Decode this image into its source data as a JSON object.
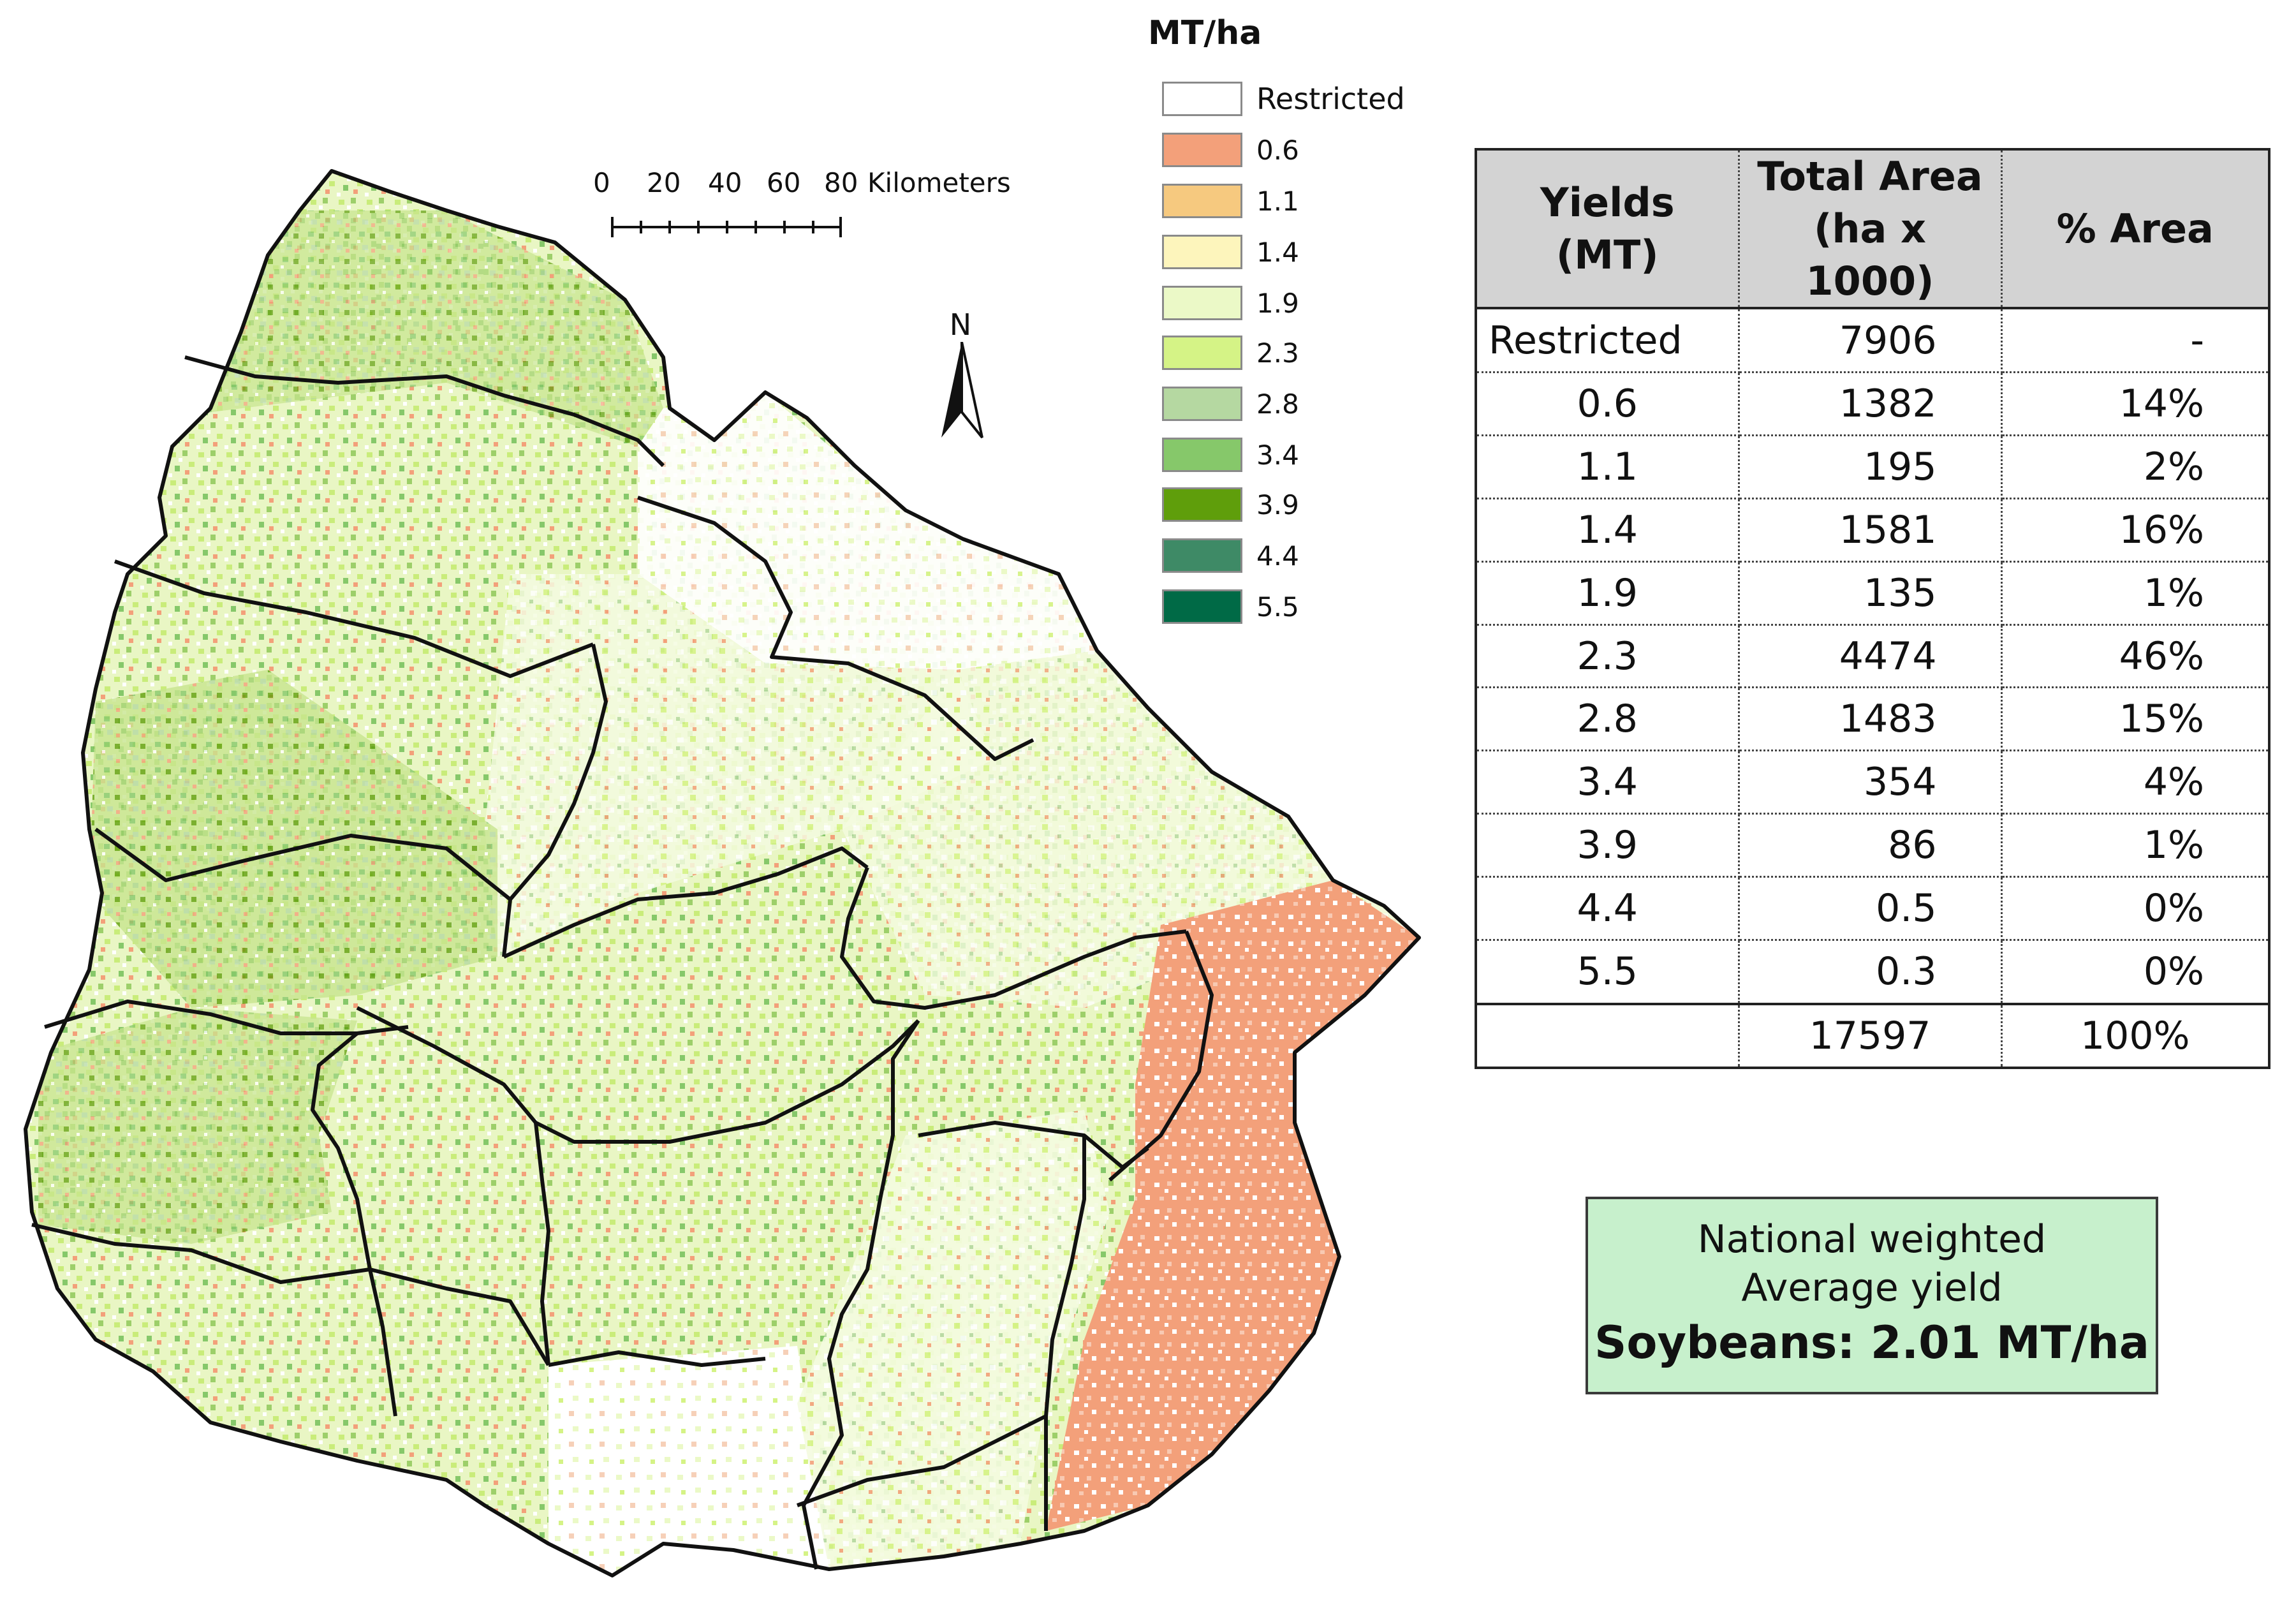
{
  "legend": {
    "title": "MT/ha",
    "items": [
      {
        "label": "Restricted",
        "color": "#ffffff"
      },
      {
        "label": "0.6",
        "color": "#f3a07a"
      },
      {
        "label": "1.1",
        "color": "#f6c97f"
      },
      {
        "label": "1.4",
        "color": "#fdf5bc"
      },
      {
        "label": "1.9",
        "color": "#ebf9c7"
      },
      {
        "label": "2.3",
        "color": "#d5f386"
      },
      {
        "label": "2.8",
        "color": "#b5d8a1"
      },
      {
        "label": "3.4",
        "color": "#86c86a"
      },
      {
        "label": "3.9",
        "color": "#5f9e0b"
      },
      {
        "label": "4.4",
        "color": "#3e8a66"
      },
      {
        "label": "5.5",
        "color": "#006a46"
      }
    ]
  },
  "scale_bar": {
    "ticks": [
      "0",
      "20",
      "40",
      "60",
      "80"
    ],
    "unit": "Kilometers"
  },
  "north_label": "N",
  "table": {
    "headers": {
      "col1": "Yields (MT)",
      "col2_line1": "Total Area",
      "col2_line2": "(ha x 1000)",
      "col3": "% Area"
    },
    "rows": [
      {
        "yield": "Restricted",
        "area": "7906",
        "pct": "-"
      },
      {
        "yield": "0.6",
        "area": "1382",
        "pct": "14%"
      },
      {
        "yield": "1.1",
        "area": "195",
        "pct": "2%"
      },
      {
        "yield": "1.4",
        "area": "1581",
        "pct": "16%"
      },
      {
        "yield": "1.9",
        "area": "135",
        "pct": "1%"
      },
      {
        "yield": "2.3",
        "area": "4474",
        "pct": "46%"
      },
      {
        "yield": "2.8",
        "area": "1483",
        "pct": "15%"
      },
      {
        "yield": "3.4",
        "area": "354",
        "pct": "4%"
      },
      {
        "yield": "3.9",
        "area": "86",
        "pct": "1%"
      },
      {
        "yield": "4.4",
        "area": "0.5",
        "pct": "0%"
      },
      {
        "yield": "5.5",
        "area": "0.3",
        "pct": "0%"
      }
    ],
    "total": {
      "yield": "",
      "area": "17597",
      "pct": "100%"
    }
  },
  "average_box": {
    "line1": "National weighted",
    "line2": "Average yield",
    "line3": "Soybeans: 2.01 MT/ha"
  }
}
